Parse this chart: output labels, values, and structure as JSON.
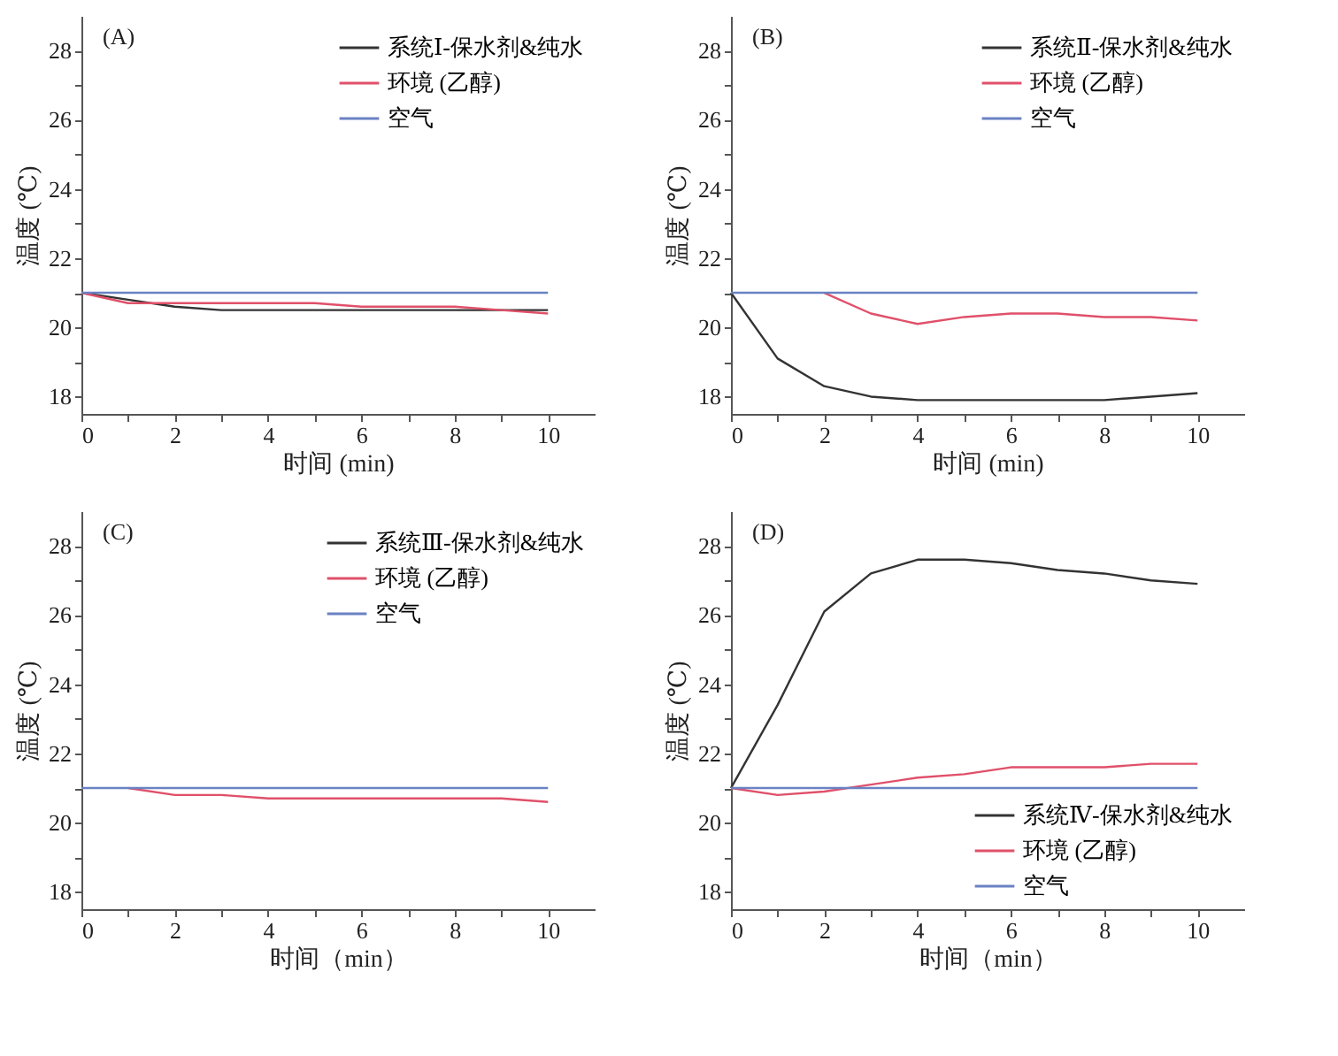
{
  "chart_data": [
    {
      "type": "line",
      "annotations": [
        "(A)"
      ],
      "xlabel": "时间 (min)",
      "ylabel": "温度 (℃)",
      "x": [
        0,
        1,
        2,
        3,
        4,
        5,
        6,
        7,
        8,
        9,
        10
      ],
      "xlim": [
        0,
        11
      ],
      "xticks": [
        0,
        {
          "value": 1,
          "label": null
        },
        2,
        {
          "value": 3,
          "label": null
        },
        4,
        {
          "value": 5,
          "label": null
        },
        6,
        {
          "value": 7,
          "label": null
        },
        8,
        {
          "value": 9,
          "label": null
        },
        10
      ],
      "ylim": [
        17.5,
        29
      ],
      "yticks": [
        18,
        {
          "value": 19,
          "label": null
        },
        20,
        {
          "value": 21,
          "label": null
        },
        22,
        {
          "value": 23,
          "label": null
        },
        24,
        {
          "value": 25,
          "label": null
        },
        26,
        {
          "value": 27,
          "label": null
        },
        28
      ],
      "grid": false,
      "legend": "top right",
      "line_style": "solid",
      "marker": "none",
      "series": [
        {
          "name": "系统Ⅰ-保水剂&纯水",
          "color": "#333333",
          "values": [
            21,
            20.8,
            20.6,
            20.5,
            20.5,
            20.5,
            20.5,
            20.5,
            20.5,
            20.5,
            20.5
          ]
        },
        {
          "name": "环境 (乙醇)",
          "color": "#e0506a",
          "values": [
            21,
            20.7,
            20.7,
            20.7,
            20.7,
            20.7,
            20.6,
            20.6,
            20.6,
            20.5,
            20.4
          ]
        },
        {
          "name": "空气",
          "color": "#6a82c4",
          "values": [
            21,
            21,
            21,
            21,
            21,
            21,
            21,
            21,
            21,
            21,
            21
          ]
        }
      ]
    },
    {
      "type": "line",
      "annotations": [
        "(B)"
      ],
      "xlabel": "时间 (min)",
      "ylabel": "温度 (℃)",
      "x": [
        0,
        1,
        2,
        3,
        4,
        5,
        6,
        7,
        8,
        9,
        10
      ],
      "xlim": [
        0,
        11
      ],
      "xticks": [
        0,
        {
          "value": 1,
          "label": null
        },
        2,
        {
          "value": 3,
          "label": null
        },
        4,
        {
          "value": 5,
          "label": null
        },
        6,
        {
          "value": 7,
          "label": null
        },
        8,
        {
          "value": 9,
          "label": null
        },
        10
      ],
      "ylim": [
        17.5,
        29
      ],
      "yticks": [
        18,
        {
          "value": 19,
          "label": null
        },
        20,
        {
          "value": 21,
          "label": null
        },
        22,
        {
          "value": 23,
          "label": null
        },
        24,
        {
          "value": 25,
          "label": null
        },
        26,
        {
          "value": 27,
          "label": null
        },
        28
      ],
      "grid": false,
      "legend": "top right",
      "line_style": "solid",
      "marker": "none",
      "series": [
        {
          "name": "系统Ⅱ-保水剂&纯水",
          "color": "#333333",
          "values": [
            21,
            19.1,
            18.3,
            18.0,
            17.9,
            17.9,
            17.9,
            17.9,
            17.9,
            18.0,
            18.1
          ]
        },
        {
          "name": "环境 (乙醇)",
          "color": "#e0506a",
          "values": [
            null,
            null,
            21,
            20.4,
            20.1,
            20.3,
            20.4,
            20.4,
            20.3,
            20.3,
            20.2
          ]
        },
        {
          "name": "空气",
          "color": "#6a82c4",
          "values": [
            21,
            21,
            21,
            21,
            21,
            21,
            21,
            21,
            21,
            21,
            21
          ]
        }
      ]
    },
    {
      "type": "line",
      "annotations": [
        "(C)"
      ],
      "xlabel": "时间（min）",
      "ylabel": "温度 (℃)",
      "x": [
        0,
        1,
        2,
        3,
        4,
        5,
        6,
        7,
        8,
        9,
        10
      ],
      "xlim": [
        0,
        11
      ],
      "xticks": [
        0,
        {
          "value": 1,
          "label": null
        },
        2,
        {
          "value": 3,
          "label": null
        },
        4,
        {
          "value": 5,
          "label": null
        },
        6,
        {
          "value": 7,
          "label": null
        },
        8,
        {
          "value": 9,
          "label": null
        },
        10
      ],
      "ylim": [
        17.5,
        29
      ],
      "yticks": [
        18,
        {
          "value": 19,
          "label": null
        },
        20,
        {
          "value": 21,
          "label": null
        },
        22,
        {
          "value": 23,
          "label": null
        },
        24,
        {
          "value": 25,
          "label": null
        },
        26,
        {
          "value": 27,
          "label": null
        },
        28
      ],
      "grid": false,
      "legend": "top right",
      "line_style": "solid",
      "marker": "none",
      "series": [
        {
          "name": "系统Ⅲ-保水剂&纯水",
          "color": "#333333",
          "values": [
            null,
            null,
            null,
            null,
            null,
            null,
            null,
            null,
            null,
            null,
            null
          ]
        },
        {
          "name": "环境 (乙醇)",
          "color": "#e0506a",
          "values": [
            null,
            21,
            20.8,
            20.8,
            20.7,
            20.7,
            20.7,
            20.7,
            20.7,
            20.7,
            20.6
          ]
        },
        {
          "name": "空气",
          "color": "#6a82c4",
          "values": [
            21,
            21,
            21,
            21,
            21,
            21,
            21,
            21,
            21,
            21,
            21
          ]
        }
      ]
    },
    {
      "type": "line",
      "annotations": [
        "(D)"
      ],
      "xlabel": "时间（min）",
      "ylabel": "温度 (℃)",
      "x": [
        0,
        1,
        2,
        3,
        4,
        5,
        6,
        7,
        8,
        9,
        10
      ],
      "xlim": [
        0,
        11
      ],
      "xticks": [
        0,
        {
          "value": 1,
          "label": null
        },
        2,
        {
          "value": 3,
          "label": null
        },
        4,
        {
          "value": 5,
          "label": null
        },
        6,
        {
          "value": 7,
          "label": null
        },
        8,
        {
          "value": 9,
          "label": null
        },
        10
      ],
      "ylim": [
        17.5,
        29
      ],
      "yticks": [
        18,
        {
          "value": 19,
          "label": null
        },
        20,
        {
          "value": 21,
          "label": null
        },
        22,
        {
          "value": 23,
          "label": null
        },
        24,
        {
          "value": 25,
          "label": null
        },
        26,
        {
          "value": 27,
          "label": null
        },
        28
      ],
      "grid": false,
      "legend": "bottom right",
      "line_style": "solid",
      "marker": "none",
      "series": [
        {
          "name": "系统Ⅳ-保水剂&纯水",
          "color": "#333333",
          "values": [
            21,
            23.4,
            26.1,
            27.2,
            27.6,
            27.6,
            27.5,
            27.3,
            27.2,
            27.0,
            26.9
          ]
        },
        {
          "name": "环境 (乙醇)",
          "color": "#e0506a",
          "values": [
            21,
            20.8,
            20.9,
            21.1,
            21.3,
            21.4,
            21.6,
            21.6,
            21.6,
            21.7,
            21.7
          ]
        },
        {
          "name": "空气",
          "color": "#6a82c4",
          "values": [
            21,
            21,
            21,
            21,
            21,
            21,
            21,
            21,
            21,
            21,
            21
          ]
        }
      ]
    }
  ]
}
